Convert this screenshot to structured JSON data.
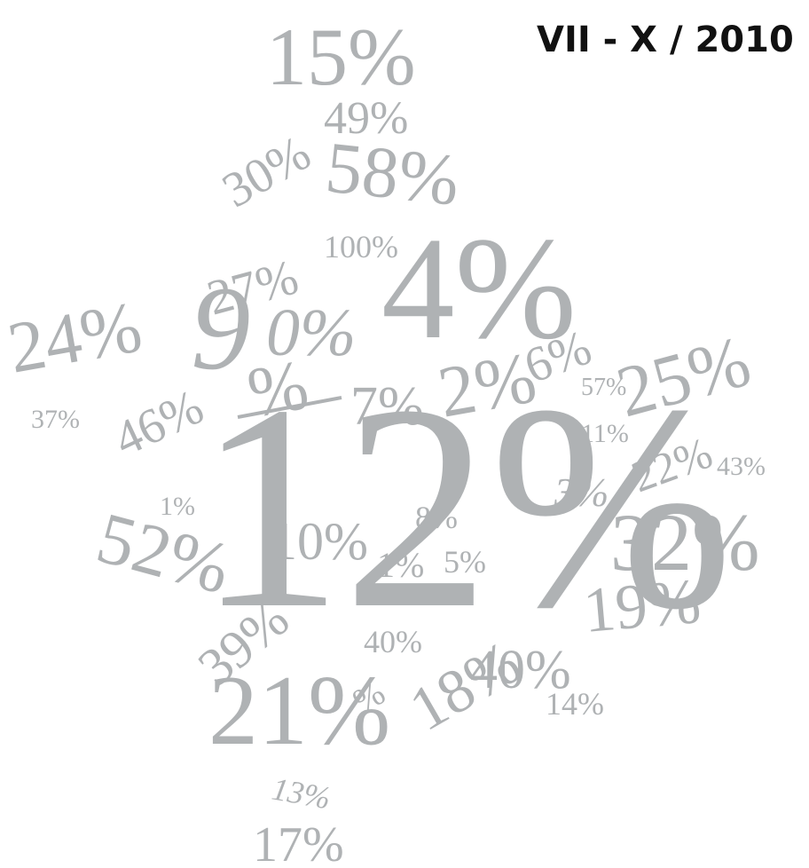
{
  "header": {
    "title": "VII - X / 2010"
  },
  "figures": [
    "15%",
    "49%",
    "30%",
    "58%",
    "100%",
    "4%",
    "27%",
    "24%",
    "9",
    "0%",
    "%",
    "7%",
    "2%",
    "6%",
    "57%",
    "25%",
    "37%",
    "46%",
    "12%",
    "11%",
    "22%",
    "43%",
    "3%",
    "1%",
    "52%",
    "10%",
    "8%",
    "1%",
    "5%",
    "32%",
    "19%",
    "39%",
    "40%",
    "40%",
    "18%",
    "%",
    "21%",
    "14%",
    "13%",
    "17%"
  ]
}
